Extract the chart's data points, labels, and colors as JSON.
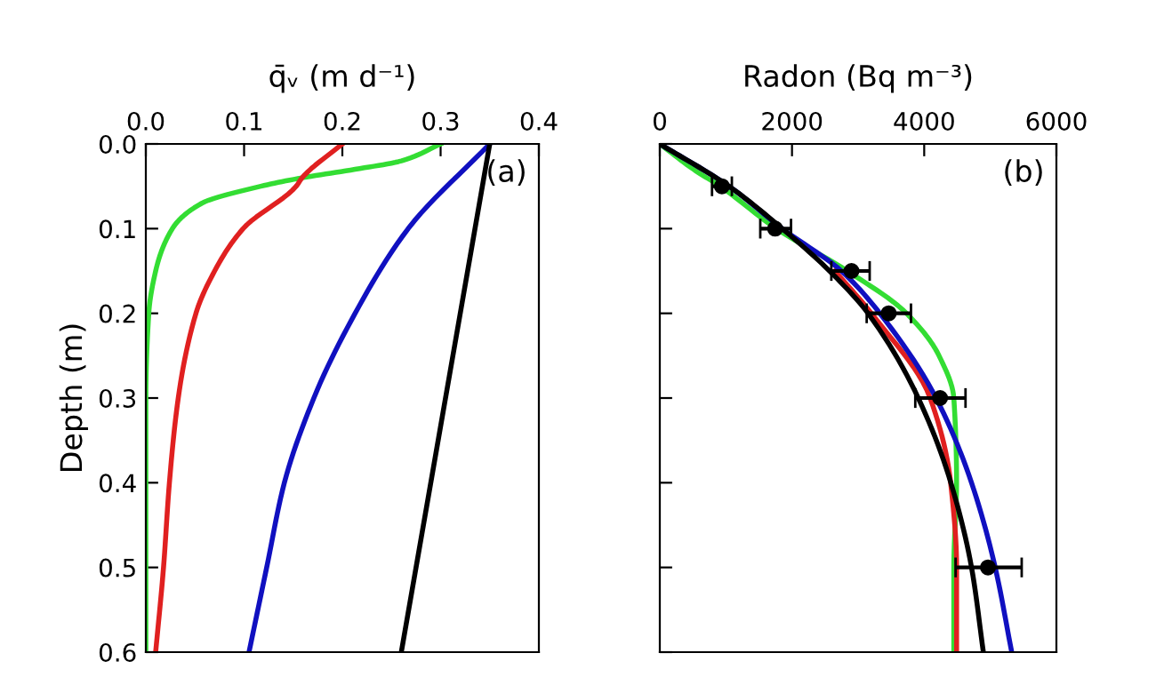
{
  "chart_data": [
    {
      "type": "line",
      "xlabel": "q̄ᵥ (m d⁻¹)",
      "ylabel": "Depth (m)",
      "annotations": [
        "(a)"
      ],
      "xlim": [
        0,
        0.4
      ],
      "xticks": [
        {
          "value": 0,
          "label": "0.0"
        },
        0.1,
        0.2,
        0.3,
        0.4
      ],
      "ylim": [
        0.6,
        0
      ],
      "yticks": [
        {
          "value": 0,
          "label": "0.0"
        },
        0.1,
        0.2,
        0.3,
        0.4,
        0.5,
        0.6
      ],
      "grid": false,
      "legend": false,
      "marker": "none",
      "line_style": "solid",
      "series": [
        {
          "color": "#33dd33",
          "x": [
            0.3,
            0.26,
            0.213,
            0.159,
            0.117,
            0.057,
            0.027,
            0.01,
            0.003,
            0,
            0,
            0,
            0
          ],
          "values": [
            0,
            0.02,
            0.03,
            0.04,
            0.05,
            0.07,
            0.1,
            0.15,
            0.2,
            0.3,
            0.4,
            0.5,
            0.6
          ]
        },
        {
          "color": "#e02020",
          "x": [
            0.2,
            0.159,
            0.153,
            0.099,
            0.07,
            0.051,
            0.033,
            0.024,
            0.018,
            0.01
          ],
          "values": [
            0,
            0.04,
            0.05,
            0.1,
            0.15,
            0.2,
            0.3,
            0.4,
            0.5,
            0.6
          ]
        },
        {
          "color": "#1010c0",
          "x": [
            0.35,
            0.267,
            0.213,
            0.171,
            0.141,
            0.123,
            0.105
          ],
          "values": [
            0,
            0.1,
            0.2,
            0.3,
            0.4,
            0.5,
            0.6
          ]
        },
        {
          "color": "#000000",
          "x": [
            0.35,
            0.26
          ],
          "values": [
            0,
            0.6
          ]
        }
      ]
    },
    {
      "type": "line",
      "xlabel": "Radon (Bq m⁻³)",
      "annotations": [
        "(b)"
      ],
      "xlim": [
        0,
        6000
      ],
      "xticks": [
        0,
        2000,
        4000,
        6000
      ],
      "ylim": [
        0.6,
        0
      ],
      "yticks": [
        {
          "value": 0,
          "label": null
        },
        {
          "value": 0.1,
          "label": null
        },
        {
          "value": 0.2,
          "label": null
        },
        {
          "value": 0.3,
          "label": null
        },
        {
          "value": 0.4,
          "label": null
        },
        {
          "value": 0.5,
          "label": null
        },
        {
          "value": 0.6,
          "label": null
        }
      ],
      "tick_labels": "x",
      "grid": false,
      "legend": false,
      "marker": "none",
      "line_style": "solid",
      "series": [
        {
          "color": "#33dd33",
          "x": [
            0,
            510,
            913,
            1763,
            2837,
            3732,
            4224,
            4448,
            4490,
            4448,
            4448
          ],
          "values": [
            0,
            0.03,
            0.05,
            0.1,
            0.15,
            0.2,
            0.25,
            0.3,
            0.4,
            0.5,
            0.6
          ]
        },
        {
          "color": "#e02020",
          "x": [
            2650,
            3200,
            4090,
            4400,
            4490,
            4490
          ],
          "values": [
            0.15,
            0.2,
            0.3,
            0.4,
            0.5,
            0.6
          ]
        },
        {
          "color": "#1010c0",
          "x": [
            0,
            1047,
            1852,
            2747,
            3329,
            4179,
            4716,
            5074,
            5324
          ],
          "values": [
            0,
            0.05,
            0.1,
            0.15,
            0.2,
            0.3,
            0.4,
            0.5,
            0.6
          ]
        },
        {
          "color": "#000000",
          "x": [
            0,
            1047,
            1852,
            2568,
            3150,
            3910,
            4403,
            4716,
            4895
          ],
          "values": [
            0,
            0.05,
            0.1,
            0.15,
            0.2,
            0.3,
            0.4,
            0.5,
            0.6
          ]
        },
        {
          "type": "scatter",
          "color": "#000000",
          "marker": "circle",
          "x": [
            940,
            1745,
            2900,
            3463,
            4240,
            4965
          ],
          "values": [
            0.05,
            0.1,
            0.15,
            0.2,
            0.3,
            0.5
          ],
          "xerrors": [
            [
              790,
              1090
            ],
            [
              1520,
              1985
            ],
            [
              2595,
              3175
            ],
            [
              3130,
              3800
            ],
            [
              3865,
              4625
            ],
            [
              4475,
              5475
            ]
          ]
        }
      ]
    }
  ]
}
